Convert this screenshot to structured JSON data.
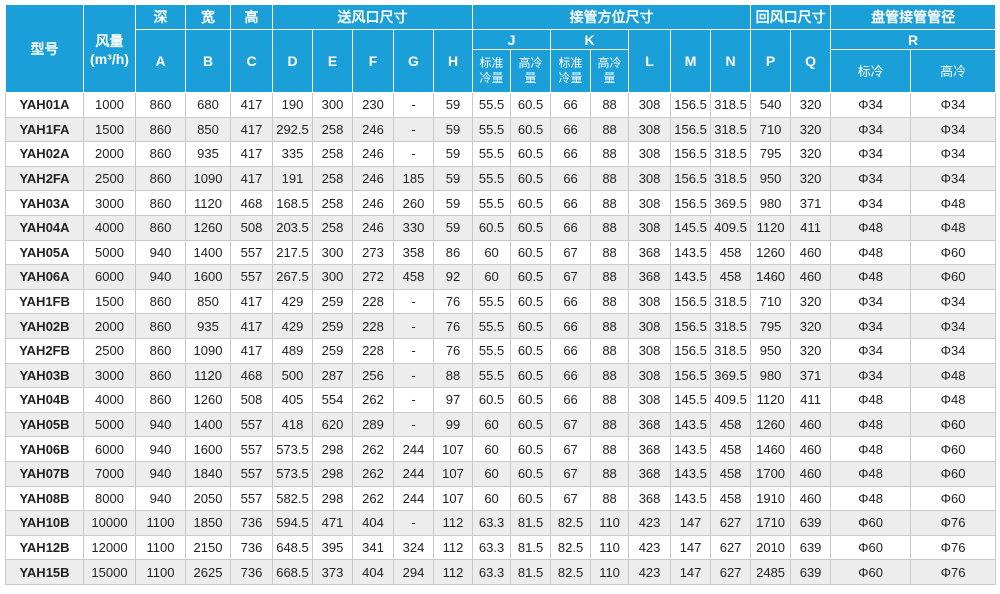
{
  "table": {
    "header": {
      "model": "型号",
      "airflow": "风量",
      "airflow_unit": "(m³/h)",
      "groups": [
        "深",
        "宽",
        "高",
        "送风口尺寸",
        "接管方位尺寸",
        "回风口尺寸",
        "盘管接管管径"
      ],
      "letters": [
        "A",
        "B",
        "C",
        "D",
        "E",
        "F",
        "G",
        "H",
        "J",
        "K",
        "L",
        "M",
        "N",
        "P",
        "Q",
        "R"
      ],
      "sub": [
        "标准冷量",
        "高冷量",
        "标准冷量",
        "高冷量",
        "标冷",
        "高冷"
      ]
    },
    "rows": [
      [
        "YAH01A",
        "1000",
        "860",
        "680",
        "417",
        "190",
        "300",
        "230",
        "-",
        "59",
        "55.5",
        "60.5",
        "66",
        "88",
        "308",
        "156.5",
        "318.5",
        "540",
        "320",
        "Φ34",
        "Φ34"
      ],
      [
        "YAH1FA",
        "1500",
        "860",
        "850",
        "417",
        "292.5",
        "258",
        "246",
        "-",
        "59",
        "55.5",
        "60.5",
        "66",
        "88",
        "308",
        "156.5",
        "318.5",
        "710",
        "320",
        "Φ34",
        "Φ34"
      ],
      [
        "YAH02A",
        "2000",
        "860",
        "935",
        "417",
        "335",
        "258",
        "246",
        "-",
        "59",
        "55.5",
        "60.5",
        "66",
        "88",
        "308",
        "156.5",
        "318.5",
        "795",
        "320",
        "Φ34",
        "Φ34"
      ],
      [
        "YAH2FA",
        "2500",
        "860",
        "1090",
        "417",
        "191",
        "258",
        "246",
        "185",
        "59",
        "55.5",
        "60.5",
        "66",
        "88",
        "308",
        "156.5",
        "318.5",
        "950",
        "320",
        "Φ34",
        "Φ34"
      ],
      [
        "YAH03A",
        "3000",
        "860",
        "1120",
        "468",
        "168.5",
        "258",
        "246",
        "260",
        "59",
        "55.5",
        "60.5",
        "66",
        "88",
        "308",
        "156.5",
        "369.5",
        "980",
        "371",
        "Φ34",
        "Φ48"
      ],
      [
        "YAH04A",
        "4000",
        "860",
        "1260",
        "508",
        "203.5",
        "258",
        "246",
        "330",
        "59",
        "60.5",
        "60.5",
        "66",
        "88",
        "308",
        "145.5",
        "409.5",
        "1120",
        "411",
        "Φ48",
        "Φ48"
      ],
      [
        "YAH05A",
        "5000",
        "940",
        "1400",
        "557",
        "217.5",
        "300",
        "273",
        "358",
        "86",
        "60",
        "60.5",
        "67",
        "88",
        "368",
        "143.5",
        "458",
        "1260",
        "460",
        "Φ48",
        "Φ60"
      ],
      [
        "YAH06A",
        "6000",
        "940",
        "1600",
        "557",
        "267.5",
        "300",
        "272",
        "458",
        "92",
        "60",
        "60.5",
        "67",
        "88",
        "368",
        "143.5",
        "458",
        "1460",
        "460",
        "Φ48",
        "Φ60"
      ],
      [
        "YAH1FB",
        "1500",
        "860",
        "850",
        "417",
        "429",
        "259",
        "228",
        "-",
        "76",
        "55.5",
        "60.5",
        "66",
        "88",
        "308",
        "156.5",
        "318.5",
        "710",
        "320",
        "Φ34",
        "Φ34"
      ],
      [
        "YAH02B",
        "2000",
        "860",
        "935",
        "417",
        "429",
        "259",
        "228",
        "-",
        "76",
        "55.5",
        "60.5",
        "66",
        "88",
        "308",
        "156.5",
        "318.5",
        "795",
        "320",
        "Φ34",
        "Φ34"
      ],
      [
        "YAH2FB",
        "2500",
        "860",
        "1090",
        "417",
        "489",
        "259",
        "228",
        "-",
        "76",
        "55.5",
        "60.5",
        "66",
        "88",
        "308",
        "156.5",
        "318.5",
        "950",
        "320",
        "Φ34",
        "Φ34"
      ],
      [
        "YAH03B",
        "3000",
        "860",
        "1120",
        "468",
        "500",
        "287",
        "256",
        "-",
        "88",
        "55.5",
        "60.5",
        "66",
        "88",
        "308",
        "156.5",
        "369.5",
        "980",
        "371",
        "Φ34",
        "Φ48"
      ],
      [
        "YAH04B",
        "4000",
        "860",
        "1260",
        "508",
        "405",
        "554",
        "262",
        "-",
        "97",
        "60.5",
        "60.5",
        "66",
        "88",
        "308",
        "145.5",
        "409.5",
        "1120",
        "411",
        "Φ48",
        "Φ48"
      ],
      [
        "YAH05B",
        "5000",
        "940",
        "1400",
        "557",
        "418",
        "620",
        "289",
        "-",
        "99",
        "60",
        "60.5",
        "67",
        "88",
        "368",
        "143.5",
        "458",
        "1260",
        "460",
        "Φ48",
        "Φ60"
      ],
      [
        "YAH06B",
        "6000",
        "940",
        "1600",
        "557",
        "573.5",
        "298",
        "262",
        "244",
        "107",
        "60",
        "60.5",
        "67",
        "88",
        "368",
        "143.5",
        "458",
        "1460",
        "460",
        "Φ48",
        "Φ60"
      ],
      [
        "YAH07B",
        "7000",
        "940",
        "1840",
        "557",
        "573.5",
        "298",
        "262",
        "244",
        "107",
        "60",
        "60.5",
        "67",
        "88",
        "368",
        "143.5",
        "458",
        "1700",
        "460",
        "Φ48",
        "Φ60"
      ],
      [
        "YAH08B",
        "8000",
        "940",
        "2050",
        "557",
        "582.5",
        "298",
        "262",
        "244",
        "107",
        "60",
        "60.5",
        "67",
        "88",
        "368",
        "143.5",
        "458",
        "1910",
        "460",
        "Φ48",
        "Φ60"
      ],
      [
        "YAH10B",
        "10000",
        "1100",
        "1850",
        "736",
        "594.5",
        "471",
        "404",
        "-",
        "112",
        "63.3",
        "81.5",
        "82.5",
        "110",
        "423",
        "147",
        "627",
        "1710",
        "639",
        "Φ60",
        "Φ76"
      ],
      [
        "YAH12B",
        "12000",
        "1100",
        "2150",
        "736",
        "648.5",
        "395",
        "341",
        "324",
        "112",
        "63.3",
        "81.5",
        "82.5",
        "110",
        "423",
        "147",
        "627",
        "2010",
        "639",
        "Φ60",
        "Φ76"
      ],
      [
        "YAH15B",
        "15000",
        "1100",
        "2625",
        "736",
        "668.5",
        "373",
        "404",
        "294",
        "112",
        "63.3",
        "81.5",
        "82.5",
        "110",
        "423",
        "147",
        "627",
        "2485",
        "639",
        "Φ60",
        "Φ76"
      ]
    ]
  }
}
